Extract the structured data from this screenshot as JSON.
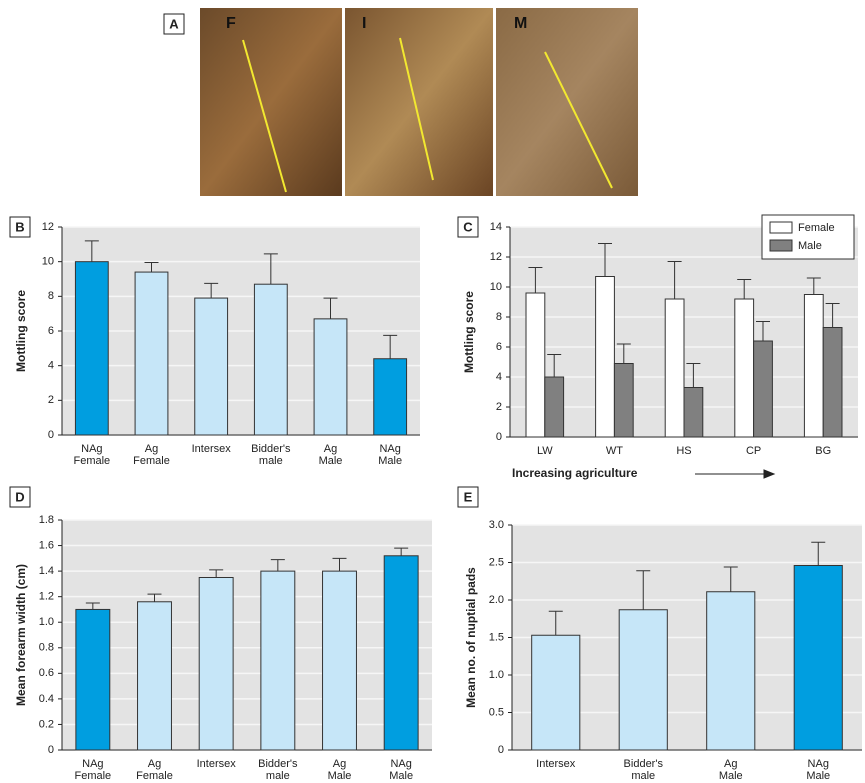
{
  "photos": {
    "panel": "A",
    "labels": [
      "F",
      "I",
      "M"
    ]
  },
  "chart_data": [
    {
      "type": "bar",
      "panel": "B",
      "ylabel": "Mottling score",
      "categories": [
        [
          "NAg",
          "Female"
        ],
        [
          "Ag",
          "Female"
        ],
        [
          "Intersex"
        ],
        [
          "Bidder's",
          "male"
        ],
        [
          "Ag",
          "Male"
        ],
        [
          "NAg",
          "Male"
        ]
      ],
      "values": [
        10.0,
        9.4,
        7.9,
        8.7,
        6.7,
        4.4
      ],
      "errors": [
        1.2,
        0.55,
        0.85,
        1.75,
        1.2,
        1.35
      ],
      "colors": [
        "#009ee0",
        "#c6e6f8",
        "#c6e6f8",
        "#c6e6f8",
        "#c6e6f8",
        "#009ee0"
      ],
      "ylim": [
        0,
        12
      ],
      "yticks": [
        0,
        2,
        4,
        6,
        8,
        10,
        12
      ],
      "grid": true
    },
    {
      "type": "grouped_bar",
      "panel": "C",
      "ylabel": "Mottling score",
      "xlabel": "Increasing agriculture",
      "categories": [
        [
          "LW"
        ],
        [
          "WT"
        ],
        [
          "HS"
        ],
        [
          "CP"
        ],
        [
          "BG"
        ]
      ],
      "series": [
        {
          "name": "Female",
          "color": "#ffffff",
          "values": [
            9.6,
            10.7,
            9.2,
            9.2,
            9.5
          ],
          "errors": [
            1.7,
            2.2,
            2.5,
            1.3,
            1.1
          ]
        },
        {
          "name": "Male",
          "color": "#808080",
          "values": [
            4.0,
            4.9,
            3.3,
            6.4,
            7.3
          ],
          "errors": [
            1.5,
            1.3,
            1.6,
            1.3,
            1.6
          ]
        }
      ],
      "ylim": [
        0,
        14
      ],
      "yticks": [
        0,
        2,
        4,
        6,
        8,
        10,
        12,
        14
      ],
      "grid": true,
      "legend": "top-right"
    },
    {
      "type": "bar",
      "panel": "D",
      "ylabel": "Mean forearm width (cm)",
      "categories": [
        [
          "NAg",
          "Female"
        ],
        [
          "Ag",
          "Female"
        ],
        [
          "Intersex"
        ],
        [
          "Bidder's",
          "male"
        ],
        [
          "Ag",
          "Male"
        ],
        [
          "NAg",
          "Male"
        ]
      ],
      "values": [
        1.1,
        1.16,
        1.35,
        1.4,
        1.4,
        1.52
      ],
      "errors": [
        0.05,
        0.06,
        0.06,
        0.09,
        0.1,
        0.06
      ],
      "colors": [
        "#009ee0",
        "#c6e6f8",
        "#c6e6f8",
        "#c6e6f8",
        "#c6e6f8",
        "#009ee0"
      ],
      "ylim": [
        0,
        1.8
      ],
      "yticks": [
        0,
        0.2,
        0.4,
        0.6,
        0.8,
        {
          "value": 1,
          "label": "1.0"
        },
        1.2,
        1.4,
        1.6,
        1.8
      ],
      "grid": true
    },
    {
      "type": "bar",
      "panel": "E",
      "ylabel": "Mean no. of nuptial pads",
      "categories": [
        [
          "Intersex"
        ],
        [
          "Bidder's",
          "male"
        ],
        [
          "Ag",
          "Male"
        ],
        [
          "NAg",
          "Male"
        ]
      ],
      "values": [
        1.53,
        1.87,
        2.11,
        2.46
      ],
      "errors": [
        0.32,
        0.52,
        0.33,
        0.31
      ],
      "colors": [
        "#c6e6f8",
        "#c6e6f8",
        "#c6e6f8",
        "#009ee0"
      ],
      "ylim": [
        0,
        3
      ],
      "yticks": [
        0,
        0.5,
        {
          "value": 1,
          "label": "1.0"
        },
        1.5,
        {
          "value": 2,
          "label": "2.0"
        },
        2.5,
        {
          "value": 3,
          "label": "3.0"
        }
      ],
      "grid": true
    }
  ]
}
